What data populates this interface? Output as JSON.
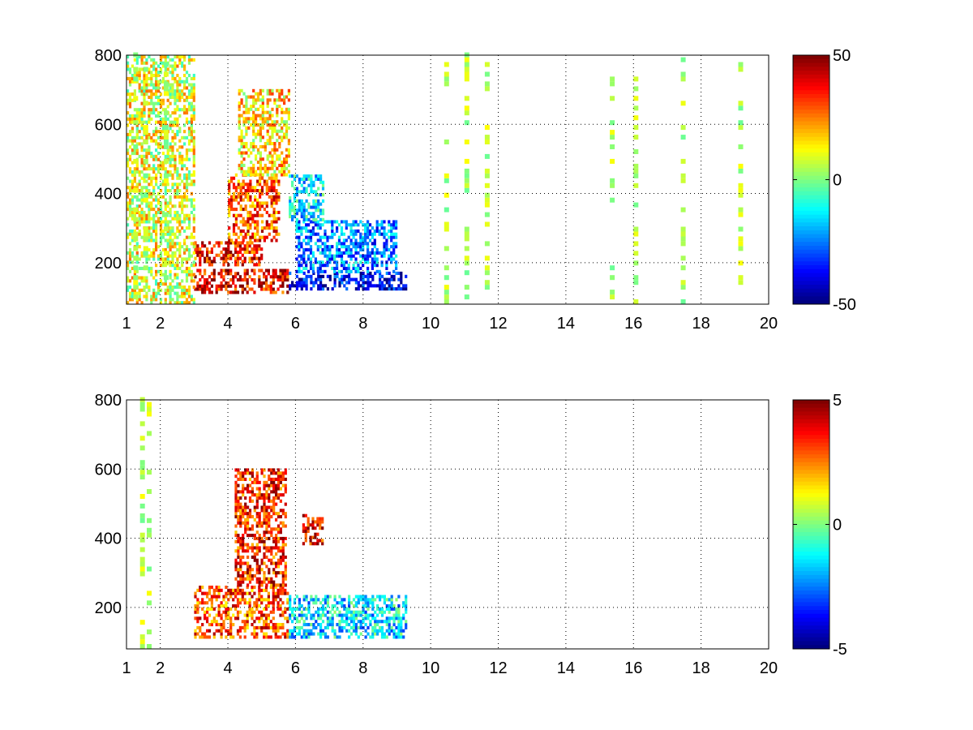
{
  "chart_data": [
    {
      "type": "heatmap",
      "title": "",
      "xlabel": "",
      "ylabel": "",
      "xlim": [
        1,
        20
      ],
      "ylim": [
        80,
        800
      ],
      "x_ticks": [
        1,
        2,
        4,
        6,
        8,
        10,
        12,
        14,
        16,
        18,
        20
      ],
      "y_ticks": [
        200,
        400,
        600,
        800
      ],
      "grid": true,
      "grid_style": "dotted",
      "colormap": "jet",
      "nan_color": "#ffffff",
      "clim": [
        -50,
        50
      ],
      "colorbar_ticks": [
        -50,
        0,
        50
      ],
      "colorbar_position": "right",
      "features": [
        {
          "x": [
            3.0,
            5.8
          ],
          "y": [
            110,
            180
          ],
          "value": 40
        },
        {
          "x": [
            3.0,
            5.0
          ],
          "y": [
            190,
            260
          ],
          "value": 35
        },
        {
          "x": [
            4.0,
            5.5
          ],
          "y": [
            260,
            450
          ],
          "value": 30
        },
        {
          "x": [
            4.3,
            5.8
          ],
          "y": [
            450,
            700
          ],
          "value": 15
        },
        {
          "x": [
            5.8,
            9.3
          ],
          "y": [
            120,
            170
          ],
          "value": -40
        },
        {
          "x": [
            6.0,
            9.0
          ],
          "y": [
            170,
            320
          ],
          "value": -25
        },
        {
          "x": [
            5.8,
            6.8
          ],
          "y": [
            320,
            450
          ],
          "value": -15
        },
        {
          "x": [
            1.0,
            3.0
          ],
          "y": [
            80,
            800
          ],
          "value": 10
        }
      ],
      "stripes": [
        1.2,
        1.5,
        2.1,
        10.4,
        11.0,
        11.6,
        15.3,
        16.0,
        17.4,
        19.1
      ]
    },
    {
      "type": "heatmap",
      "title": "",
      "xlabel": "",
      "ylabel": "",
      "xlim": [
        1,
        20
      ],
      "ylim": [
        80,
        800
      ],
      "x_ticks": [
        1,
        2,
        4,
        6,
        8,
        10,
        12,
        14,
        16,
        18,
        20
      ],
      "y_ticks": [
        200,
        400,
        600,
        800
      ],
      "grid": true,
      "grid_style": "dotted",
      "colormap": "jet",
      "nan_color": "#ffffff",
      "clim": [
        -5,
        5
      ],
      "colorbar_ticks": [
        -5,
        0,
        5
      ],
      "colorbar_position": "right",
      "features": [
        {
          "x": [
            3.0,
            5.8
          ],
          "y": [
            110,
            260
          ],
          "value": 3
        },
        {
          "x": [
            4.2,
            5.7
          ],
          "y": [
            260,
            600
          ],
          "value": 3.5
        },
        {
          "x": [
            5.8,
            9.3
          ],
          "y": [
            110,
            230
          ],
          "value": -1.5
        },
        {
          "x": [
            6.2,
            6.8
          ],
          "y": [
            380,
            470
          ],
          "value": 4
        }
      ],
      "stripes": [
        1.4,
        1.6
      ]
    }
  ]
}
